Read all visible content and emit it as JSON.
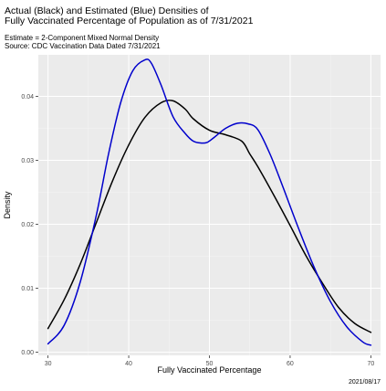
{
  "chart_data": {
    "type": "line",
    "title": "Actual (Black) and Estimated (Blue) Densities of\nFully Vaccinated Percentage of Population as of 7/31/2021",
    "title_lines": [
      "Actual (Black) and Estimated (Blue) Densities of",
      "Fully Vaccinated Percentage of Population as of 7/31/2021"
    ],
    "subtitle_lines": [
      "Estimate = 2-Component Mixed Normal Density",
      "Source: CDC Vaccination Data Dated 7/31/2021"
    ],
    "caption": "2021/08/17",
    "xlabel": "Fully Vaccinated Percentage",
    "ylabel": "Density",
    "xlim": [
      28.8,
      71.2
    ],
    "ylim": [
      -0.0005,
      0.0465
    ],
    "x_ticks": [
      30,
      40,
      50,
      60,
      70
    ],
    "x_tick_labels": [
      "30",
      "40",
      "50",
      "60",
      "70"
    ],
    "y_ticks": [
      0.0,
      0.01,
      0.02,
      0.03,
      0.04
    ],
    "y_tick_labels": [
      "0.00",
      "0.01",
      "0.02",
      "0.03",
      "0.04"
    ],
    "grid": true,
    "legend": "none",
    "colors": {
      "panel_background": "#EBEBEB",
      "gridline_major": "#FFFFFF",
      "gridline_minor": "#F5F5F5",
      "actual_line": "#000000",
      "estimated_line": "#0000CC",
      "axis_text": "#4D4D4D",
      "title_text": "#000000"
    },
    "series": [
      {
        "key": "actual",
        "color": "#000000",
        "x": [
          30,
          32,
          34,
          36,
          38,
          40,
          42,
          44,
          45.5,
          47,
          48,
          50,
          52,
          54,
          55,
          56,
          58,
          60,
          62,
          64,
          66,
          68,
          70
        ],
        "y": [
          0.0037,
          0.0082,
          0.0138,
          0.0203,
          0.0268,
          0.0324,
          0.0367,
          0.039,
          0.0393,
          0.038,
          0.0365,
          0.0347,
          0.034,
          0.033,
          0.031,
          0.029,
          0.0245,
          0.0198,
          0.015,
          0.0108,
          0.007,
          0.0045,
          0.0031
        ]
      },
      {
        "key": "estimated",
        "color": "#0000CC",
        "x": [
          30,
          32,
          34,
          36,
          37.5,
          39,
          40.5,
          42,
          42.8,
          44,
          45.5,
          47,
          48,
          49,
          49.7,
          50.5,
          52,
          53.5,
          54.8,
          56,
          57.5,
          59,
          61,
          63,
          65,
          67,
          69,
          70
        ],
        "y": [
          0.0013,
          0.0042,
          0.011,
          0.0215,
          0.031,
          0.039,
          0.044,
          0.0457,
          0.0452,
          0.0418,
          0.0368,
          0.0342,
          0.033,
          0.0327,
          0.0328,
          0.0335,
          0.035,
          0.0358,
          0.0357,
          0.0348,
          0.031,
          0.0262,
          0.0195,
          0.0132,
          0.0079,
          0.004,
          0.0016,
          0.0011
        ]
      }
    ]
  }
}
